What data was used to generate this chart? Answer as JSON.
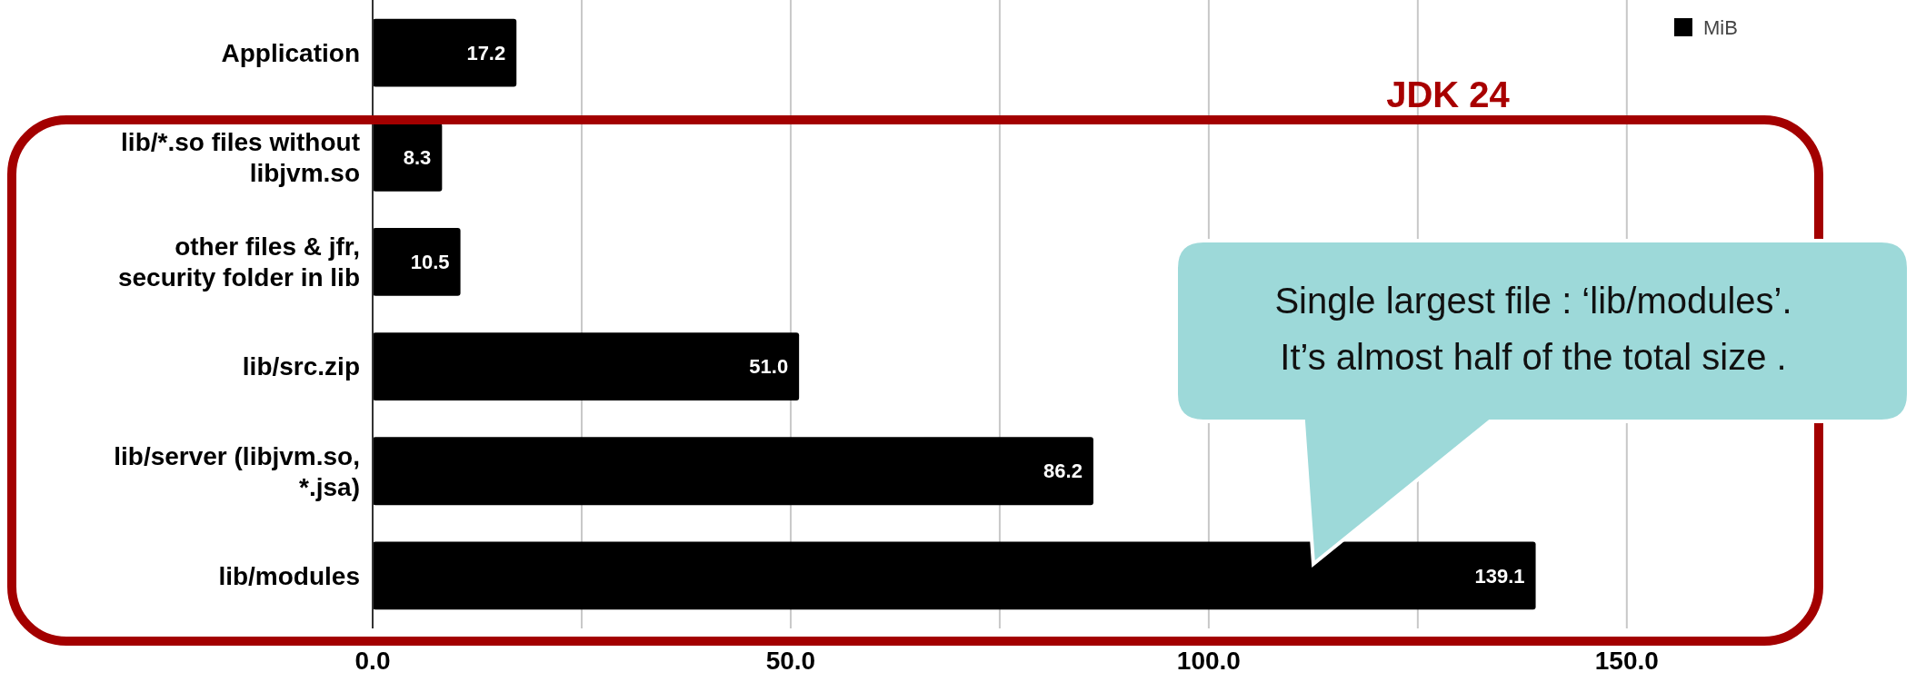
{
  "chart_data": {
    "type": "bar",
    "orientation": "horizontal",
    "categories": [
      "Application",
      "lib/*.so files without libjvm.so",
      "other files & jfr, security folder in lib",
      "lib/src.zip",
      "lib/server (libjvm.so, *.jsa)",
      "lib/modules"
    ],
    "series": [
      {
        "name": "MiB",
        "color": "#000000",
        "values": [
          17.2,
          8.3,
          10.5,
          51.0,
          86.2,
          139.1
        ]
      }
    ],
    "xlim": [
      0,
      173.5
    ],
    "xticks": [
      {
        "value": 0,
        "label": "0.0"
      },
      {
        "value": 25,
        "label": null
      },
      {
        "value": 50,
        "label": "50.0"
      },
      {
        "value": 75,
        "label": null
      },
      {
        "value": 100,
        "label": "100.0"
      },
      {
        "value": 125,
        "label": null
      },
      {
        "value": 150,
        "label": "150.0"
      }
    ],
    "value_labels": [
      "17.2",
      "8.3",
      "10.5",
      "51.0",
      "86.2",
      "139.1"
    ],
    "grid": "x",
    "legend": "top right",
    "annotations": [
      "JDK 24",
      "Single largest file : ‘lib/modules’.\nIt’s almost half of the total size ."
    ]
  }
}
